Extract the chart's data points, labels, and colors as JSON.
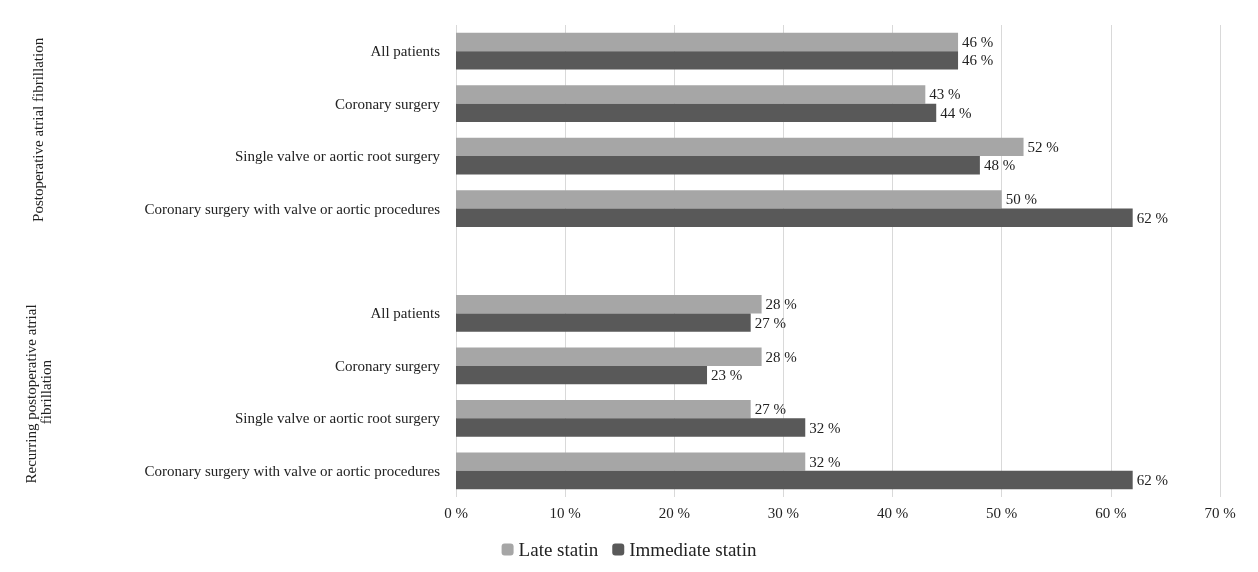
{
  "chart_data": {
    "type": "bar",
    "orientation": "horizontal",
    "categories": [
      "All patients",
      "Coronary surgery",
      "Single valve or aortic root surgery",
      "Coronary surgery with valve or aortic procedures",
      null,
      "All patients",
      "Coronary surgery",
      "Single valve or aortic root surgery",
      "Coronary surgery with valve or aortic procedures"
    ],
    "series": [
      {
        "name": "Late statin",
        "color": "#a6a6a6",
        "values": [
          46,
          43,
          52,
          50,
          null,
          28,
          28,
          27,
          32
        ],
        "value_labels": [
          "46 %",
          "43 %",
          "52 %",
          "50 %",
          null,
          "28 %",
          "28 %",
          "27 %",
          "32 %"
        ]
      },
      {
        "name": "Immediate statin",
        "color": "#595959",
        "values": [
          46,
          44,
          48,
          62,
          null,
          27,
          23,
          32,
          62
        ],
        "value_labels": [
          "46 %",
          "44 %",
          "48 %",
          "62 %",
          null,
          "27 %",
          "23 %",
          "32 %",
          "62 %"
        ]
      }
    ],
    "xlim": [
      0,
      70
    ],
    "xticks": [
      {
        "value": 0,
        "label": "0 %"
      },
      {
        "value": 10,
        "label": "10 %"
      },
      {
        "value": 20,
        "label": "20 %"
      },
      {
        "value": 30,
        "label": "30 %"
      },
      {
        "value": 40,
        "label": "40 %"
      },
      {
        "value": 50,
        "label": "50 %"
      },
      {
        "value": 60,
        "label": "60 %"
      },
      {
        "value": 70,
        "label": "70 %"
      }
    ],
    "annotations": [
      "Postoperative atrial fibrillation",
      "Recurring postoperative atrial fibrillation"
    ],
    "grid": "x",
    "legend": "bottom"
  }
}
